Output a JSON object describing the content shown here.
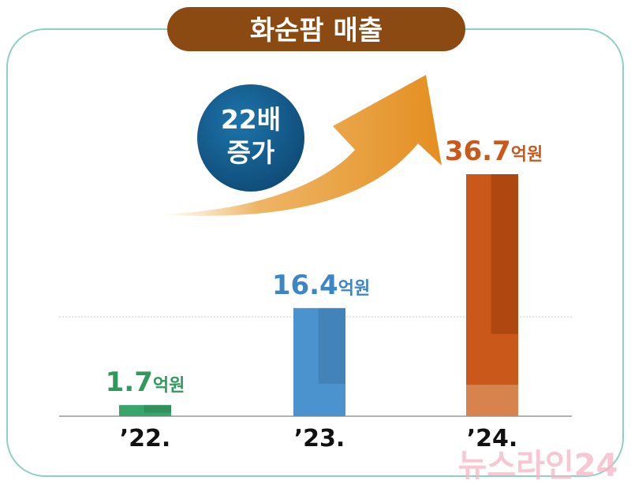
{
  "title": "화순팜 매출",
  "badge": {
    "line1": "22배",
    "line2": "증가"
  },
  "watermark": "뉴스라인24",
  "colors": {
    "title_bg": "#8b4a12",
    "badge_bg": "#155b8c",
    "arrow": "#e79a2e",
    "frame": "#8fd0c4",
    "bar_22": "#38a56a",
    "bar_23": "#4a93cf",
    "bar_24": "#c9581a",
    "label_22": "#2f9a5c",
    "label_23": "#3d86c6",
    "label_24": "#c9581a"
  },
  "chart_data": {
    "type": "bar",
    "title": "화순팜 매출",
    "categories": [
      "’22.",
      "’23.",
      "’24."
    ],
    "values": [
      1.7,
      16.4,
      36.7
    ],
    "unit": "억원",
    "data_labels": [
      {
        "number": "1.7",
        "unit": "억원"
      },
      {
        "number": "16.4",
        "unit": "억원"
      },
      {
        "number": "36.7",
        "unit": "억원"
      }
    ],
    "annotation": "22배 증가",
    "ylim": [
      0,
      36.7
    ],
    "grid": true,
    "legend": "none"
  }
}
